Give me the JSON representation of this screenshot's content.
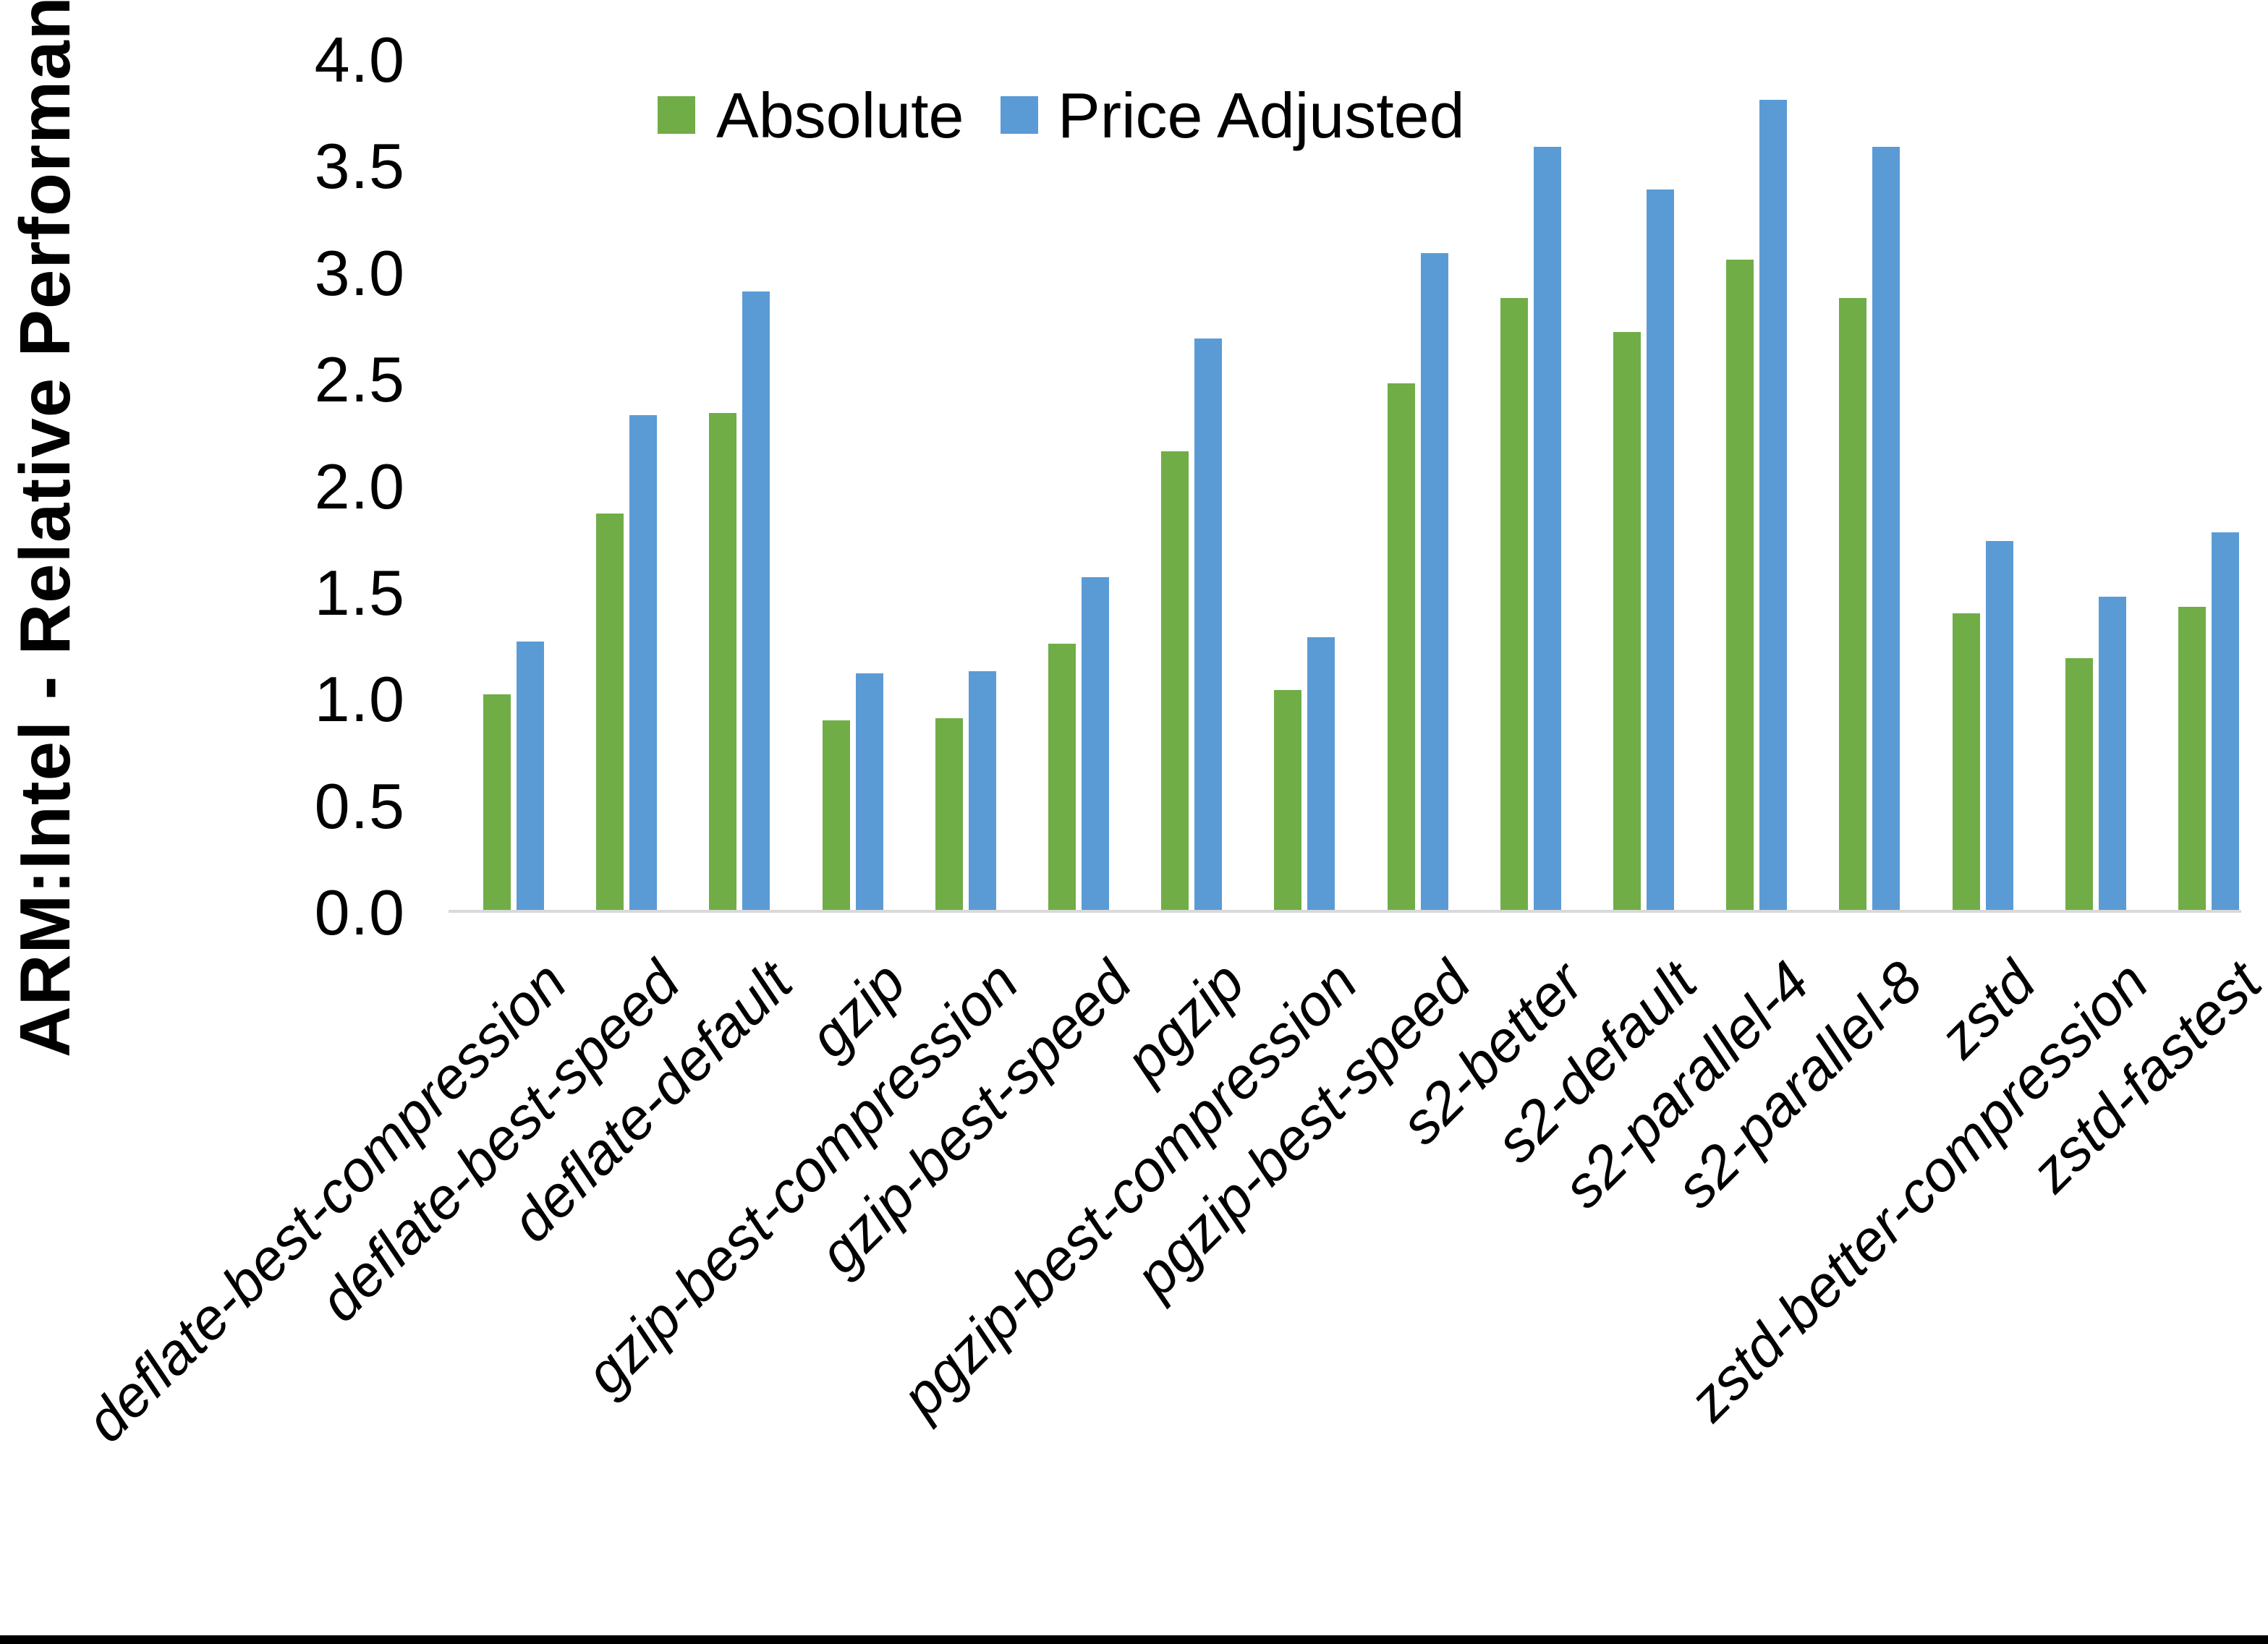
{
  "chart_data": {
    "type": "bar",
    "title": "",
    "ylabel": "ARM:Intel - Relative Performance",
    "xlabel": "",
    "ylim": [
      0.0,
      4.0
    ],
    "ytick_step": 0.5,
    "ytick_labels": [
      "4.0",
      "3.5",
      "3.0",
      "2.5",
      "2.0",
      "1.5",
      "1.0",
      "0.5",
      "0.0"
    ],
    "grid": false,
    "legend_position": "top-center",
    "categories": [
      "deflate-best-compression",
      "deflate-best-speed",
      "deflate-default",
      "gzip",
      "gzip-best-compression",
      "gzip-best-speed",
      "pgzip",
      "pgzip-best-compression",
      "pgzip-best-speed",
      "s2-better",
      "s2-default",
      "s2-parallel-4",
      "s2-parallel-8",
      "zstd",
      "zstd-better-compression",
      "zstd-fastest"
    ],
    "series": [
      {
        "name": "Absolute",
        "color": "#70AD47",
        "values": [
          1.01,
          1.86,
          2.33,
          0.89,
          0.9,
          1.25,
          2.15,
          1.03,
          2.47,
          2.87,
          2.71,
          3.05,
          2.87,
          1.39,
          1.18,
          1.42
        ]
      },
      {
        "name": "Price Adjusted",
        "color": "#5B9BD5",
        "values": [
          1.26,
          2.32,
          2.9,
          1.11,
          1.12,
          1.56,
          2.68,
          1.28,
          3.08,
          3.58,
          3.38,
          3.8,
          3.58,
          1.73,
          1.47,
          1.77
        ]
      }
    ],
    "colors": {
      "axis_line": "#D9D9D9",
      "text": "#000000",
      "background": "#FFFFFF",
      "bottom_strip": "#000000"
    }
  }
}
